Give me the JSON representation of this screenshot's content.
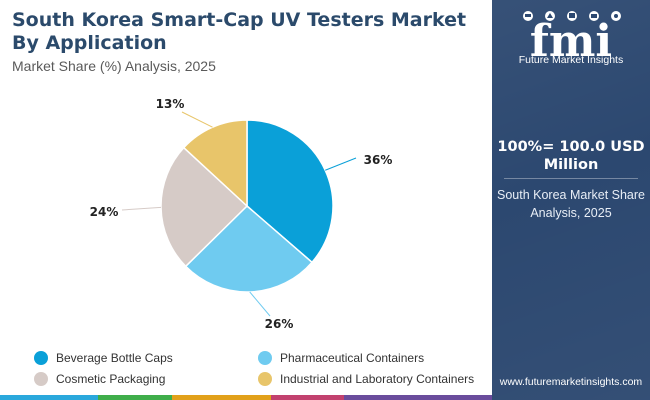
{
  "header": {
    "title": "South Korea Smart-Cap UV Testers Market By Application",
    "subtitle": "Market Share (%) Analysis, 2025"
  },
  "chart_data": {
    "type": "pie",
    "title": "South Korea Smart-Cap UV Testers Market By Application",
    "subtitle": "Market Share (%) Analysis, 2025",
    "unit": "%",
    "slices": [
      {
        "label": "Beverage Bottle Caps",
        "value": 36,
        "display": "36%",
        "color": "#0aa0d8"
      },
      {
        "label": "Pharmaceutical Containers",
        "value": 26,
        "display": "26%",
        "color": "#6fcbf0"
      },
      {
        "label": "Cosmetic Packaging",
        "value": 24,
        "display": "24%",
        "color": "#d6cbc7"
      },
      {
        "label": "Industrial and Laboratory Containers",
        "value": 13,
        "display": "13%",
        "color": "#e8c56a"
      }
    ],
    "legend_position": "bottom"
  },
  "side_panel": {
    "logo_text": "Future Market Insights",
    "logo_letters": "fmi",
    "stat": "100%= 100.0 USD Million",
    "caption": "South Korea Market Share Analysis, 2025",
    "website": "www.futuremarketinsights.com"
  },
  "bottom_bar_colors": [
    "#2aa8dc",
    "#3fae4a",
    "#e2a11a",
    "#c2416f",
    "#6a4c9c"
  ]
}
